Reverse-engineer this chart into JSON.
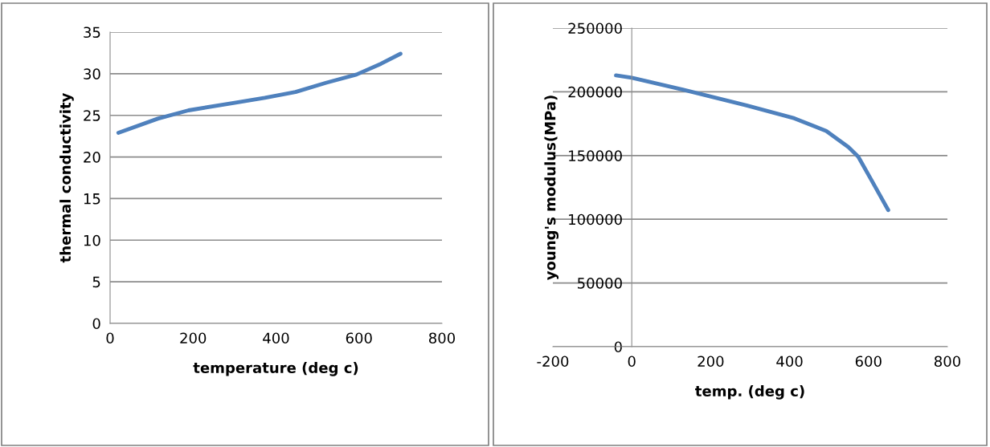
{
  "chart_data": [
    {
      "type": "line",
      "xlabel": "temperature (deg c)",
      "ylabel": "thermal conductivity",
      "xlim": [
        0,
        800
      ],
      "xticks": [
        0,
        200,
        400,
        600,
        800
      ],
      "ylim": [
        0,
        35
      ],
      "yticks": [
        0,
        5,
        10,
        15,
        20,
        25,
        30,
        35
      ],
      "grid": "y",
      "series": [
        {
          "color": "#4f81bd",
          "x": [
            20,
            115,
            189,
            300,
            373,
            447,
            520,
            594,
            653,
            700
          ],
          "values": [
            22.9,
            24.6,
            25.6,
            26.5,
            27.1,
            27.8,
            28.9,
            29.9,
            31.2,
            32.4
          ]
        }
      ]
    },
    {
      "type": "line",
      "xlabel": "temp. (deg c)",
      "ylabel": "young's modulus(MPa)",
      "xlim": [
        -200,
        800
      ],
      "xticks": [
        -200,
        0,
        200,
        400,
        600,
        800
      ],
      "ylim": [
        0,
        250000
      ],
      "yticks": [
        0,
        50000,
        100000,
        150000,
        200000,
        250000
      ],
      "grid": "y",
      "series": [
        {
          "color": "#4f81bd",
          "x": [
            -40,
            0,
            129,
            291,
            412,
            493,
            549,
            574,
            606,
            650
          ],
          "values": [
            212900,
            211000,
            201800,
            189300,
            179200,
            169200,
            156600,
            149100,
            131500,
            107200
          ]
        }
      ]
    }
  ]
}
